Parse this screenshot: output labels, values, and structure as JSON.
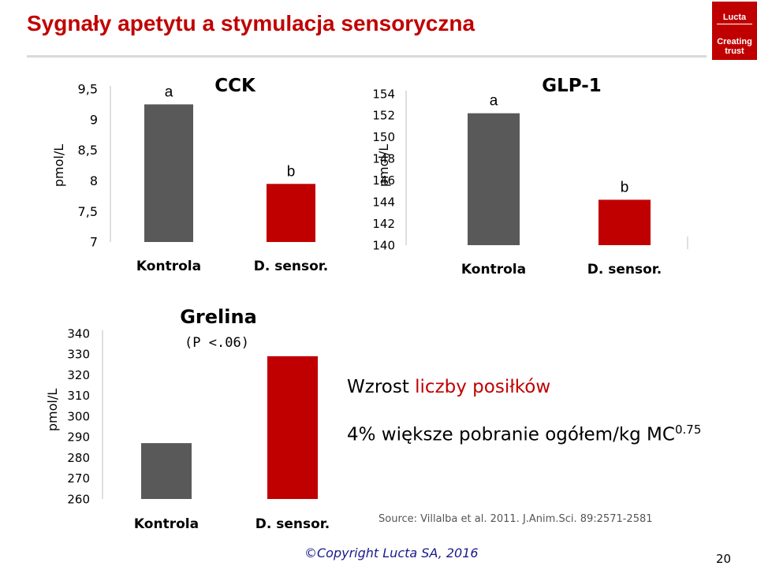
{
  "slide": {
    "title": "Sygnały apetytu a stymulacja sensoryczna",
    "logo_brand": "Lucta",
    "logo_tagline": "Creating trust",
    "note_prefix": "Wzrost ",
    "note_highlight": "liczby posiłków",
    "note2_text": "4% większe pobranie ogółem/kg MC",
    "note2_exponent": "0.75",
    "source": "Source: Villalba et al. 2011. J.Anim.Sci. 89:2571-2581",
    "copyright": "©Copyright Lucta SA, 2016",
    "page_number": "20"
  },
  "colors": {
    "control": "#595959",
    "sensor": "#c00000",
    "accent": "#c00000"
  },
  "chart_data": [
    {
      "type": "bar",
      "title": "CCK",
      "subtitle": "",
      "ylabel": "pmol/L",
      "categories": [
        "Kontrola",
        "D. sensor."
      ],
      "values": [
        9.25,
        7.95
      ],
      "ylim": [
        7,
        9.5
      ],
      "ticks": [
        "9,5",
        "9",
        "8,5",
        "8",
        "7,5",
        "7"
      ],
      "tick_values": [
        9.5,
        9,
        8.5,
        8,
        7.5,
        7
      ],
      "bar_labels": [
        "a",
        "b"
      ]
    },
    {
      "type": "bar",
      "title": "GLP-1",
      "subtitle": "",
      "ylabel": "pmol/L",
      "categories": [
        "Kontrola",
        "D. sensor."
      ],
      "values": [
        152.2,
        144.2
      ],
      "ylim": [
        140,
        154
      ],
      "ticks": [
        "154",
        "152",
        "150",
        "148",
        "146",
        "144",
        "142",
        "140"
      ],
      "tick_values": [
        154,
        152,
        150,
        148,
        146,
        144,
        142,
        140
      ],
      "bar_labels": [
        "a",
        "b"
      ]
    },
    {
      "type": "bar",
      "title": "Grelina",
      "subtitle": "(P <.06)",
      "ylabel": "pmol/L",
      "categories": [
        "Kontrola",
        "D. sensor."
      ],
      "values": [
        287,
        329
      ],
      "ylim": [
        260,
        340
      ],
      "ticks": [
        "340",
        "330",
        "320",
        "310",
        "300",
        "290",
        "280",
        "270",
        "260"
      ],
      "tick_values": [
        340,
        330,
        320,
        310,
        300,
        290,
        280,
        270,
        260
      ],
      "bar_labels": [
        "",
        ""
      ]
    }
  ]
}
